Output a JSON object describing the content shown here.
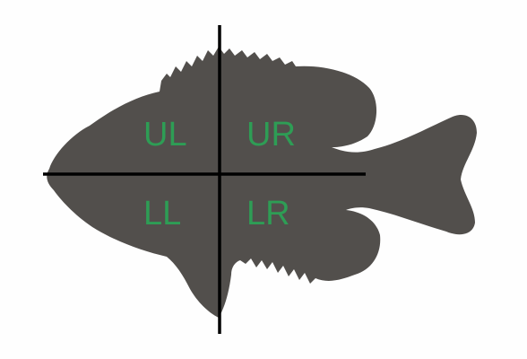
{
  "colors": {
    "background": "#fefefe",
    "fish_body": "#524f4c",
    "axis_lines": "#000000",
    "labels": "#2e9d55"
  },
  "quadrants": {
    "upper_left": "UL",
    "upper_right": "UR",
    "lower_left": "LL",
    "lower_right": "LR"
  }
}
